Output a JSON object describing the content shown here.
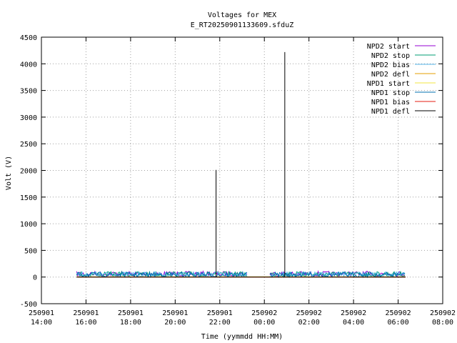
{
  "chart_data": {
    "type": "line",
    "title": "Voltages for MEX",
    "subtitle": "E_RT20250901133609.sfduZ",
    "xlabel": "Time (yymmdd HH:MM)",
    "ylabel": "Volt (V)",
    "ylim": [
      -500,
      4500
    ],
    "y_ticks": [
      "-500",
      "0",
      "500",
      "1000",
      "1500",
      "2000",
      "2500",
      "3000",
      "3500",
      "4000",
      "4500"
    ],
    "xlim": [
      "250901 14:00",
      "250902 08:00"
    ],
    "x_ticks": [
      {
        "date": "250901",
        "time": "14:00"
      },
      {
        "date": "250901",
        "time": "16:00"
      },
      {
        "date": "250901",
        "time": "18:00"
      },
      {
        "date": "250901",
        "time": "20:00"
      },
      {
        "date": "250901",
        "time": "22:00"
      },
      {
        "date": "250902",
        "time": "00:00"
      },
      {
        "date": "250902",
        "time": "02:00"
      },
      {
        "date": "250902",
        "time": "04:00"
      },
      {
        "date": "250902",
        "time": "06:00"
      },
      {
        "date": "250902",
        "time": "08:00"
      }
    ],
    "grid": true,
    "legend_position": "top-right",
    "series": [
      {
        "name": "NPD2 start",
        "color": "#9400d3",
        "segments": [
          {
            "x": [
              "250901 15:35",
              "250901 23:15"
            ],
            "y": 60
          },
          {
            "x": [
              "250902 00:15",
              "250902 06:20"
            ],
            "y": 60
          }
        ]
      },
      {
        "name": "NPD2 stop",
        "color": "#009e73",
        "segments": [
          {
            "x": [
              "250901 15:35",
              "250901 23:15"
            ],
            "y": 55
          },
          {
            "x": [
              "250902 00:15",
              "250902 06:20"
            ],
            "y": 55
          }
        ]
      },
      {
        "name": "NPD2 bias",
        "color": "#56b4e9",
        "segments": [
          {
            "x": [
              "250901 15:35",
              "250901 23:15"
            ],
            "y": 50
          },
          {
            "x": [
              "250902 00:15",
              "250902 06:20"
            ],
            "y": 50
          }
        ]
      },
      {
        "name": "NPD2 defl",
        "color": "#e69f00",
        "segments": [
          {
            "x": [
              "250901 15:35",
              "250902 06:20"
            ],
            "y": 0
          }
        ]
      },
      {
        "name": "NPD1 start",
        "color": "#f0e442",
        "segments": [
          {
            "x": [
              "250901 15:35",
              "250902 06:20"
            ],
            "y": 5
          }
        ]
      },
      {
        "name": "NPD1 stop",
        "color": "#0072b2",
        "segments": [
          {
            "x": [
              "250901 15:35",
              "250901 23:15"
            ],
            "y": 45
          },
          {
            "x": [
              "250902 00:15",
              "250902 06:20"
            ],
            "y": 45
          }
        ]
      },
      {
        "name": "NPD1 bias",
        "color": "#e51e10",
        "segments": [
          {
            "x": [
              "250901 15:35",
              "250902 06:20"
            ],
            "y": 0
          }
        ]
      },
      {
        "name": "NPD1 defl",
        "color": "#000000",
        "segments": [
          {
            "x": [
              "250901 15:35",
              "250902 06:20"
            ],
            "y": 0
          }
        ],
        "spikes": [
          {
            "x": "250901 21:50",
            "y": 2010
          },
          {
            "x": "250902 00:55",
            "y": 4220
          }
        ]
      }
    ]
  }
}
